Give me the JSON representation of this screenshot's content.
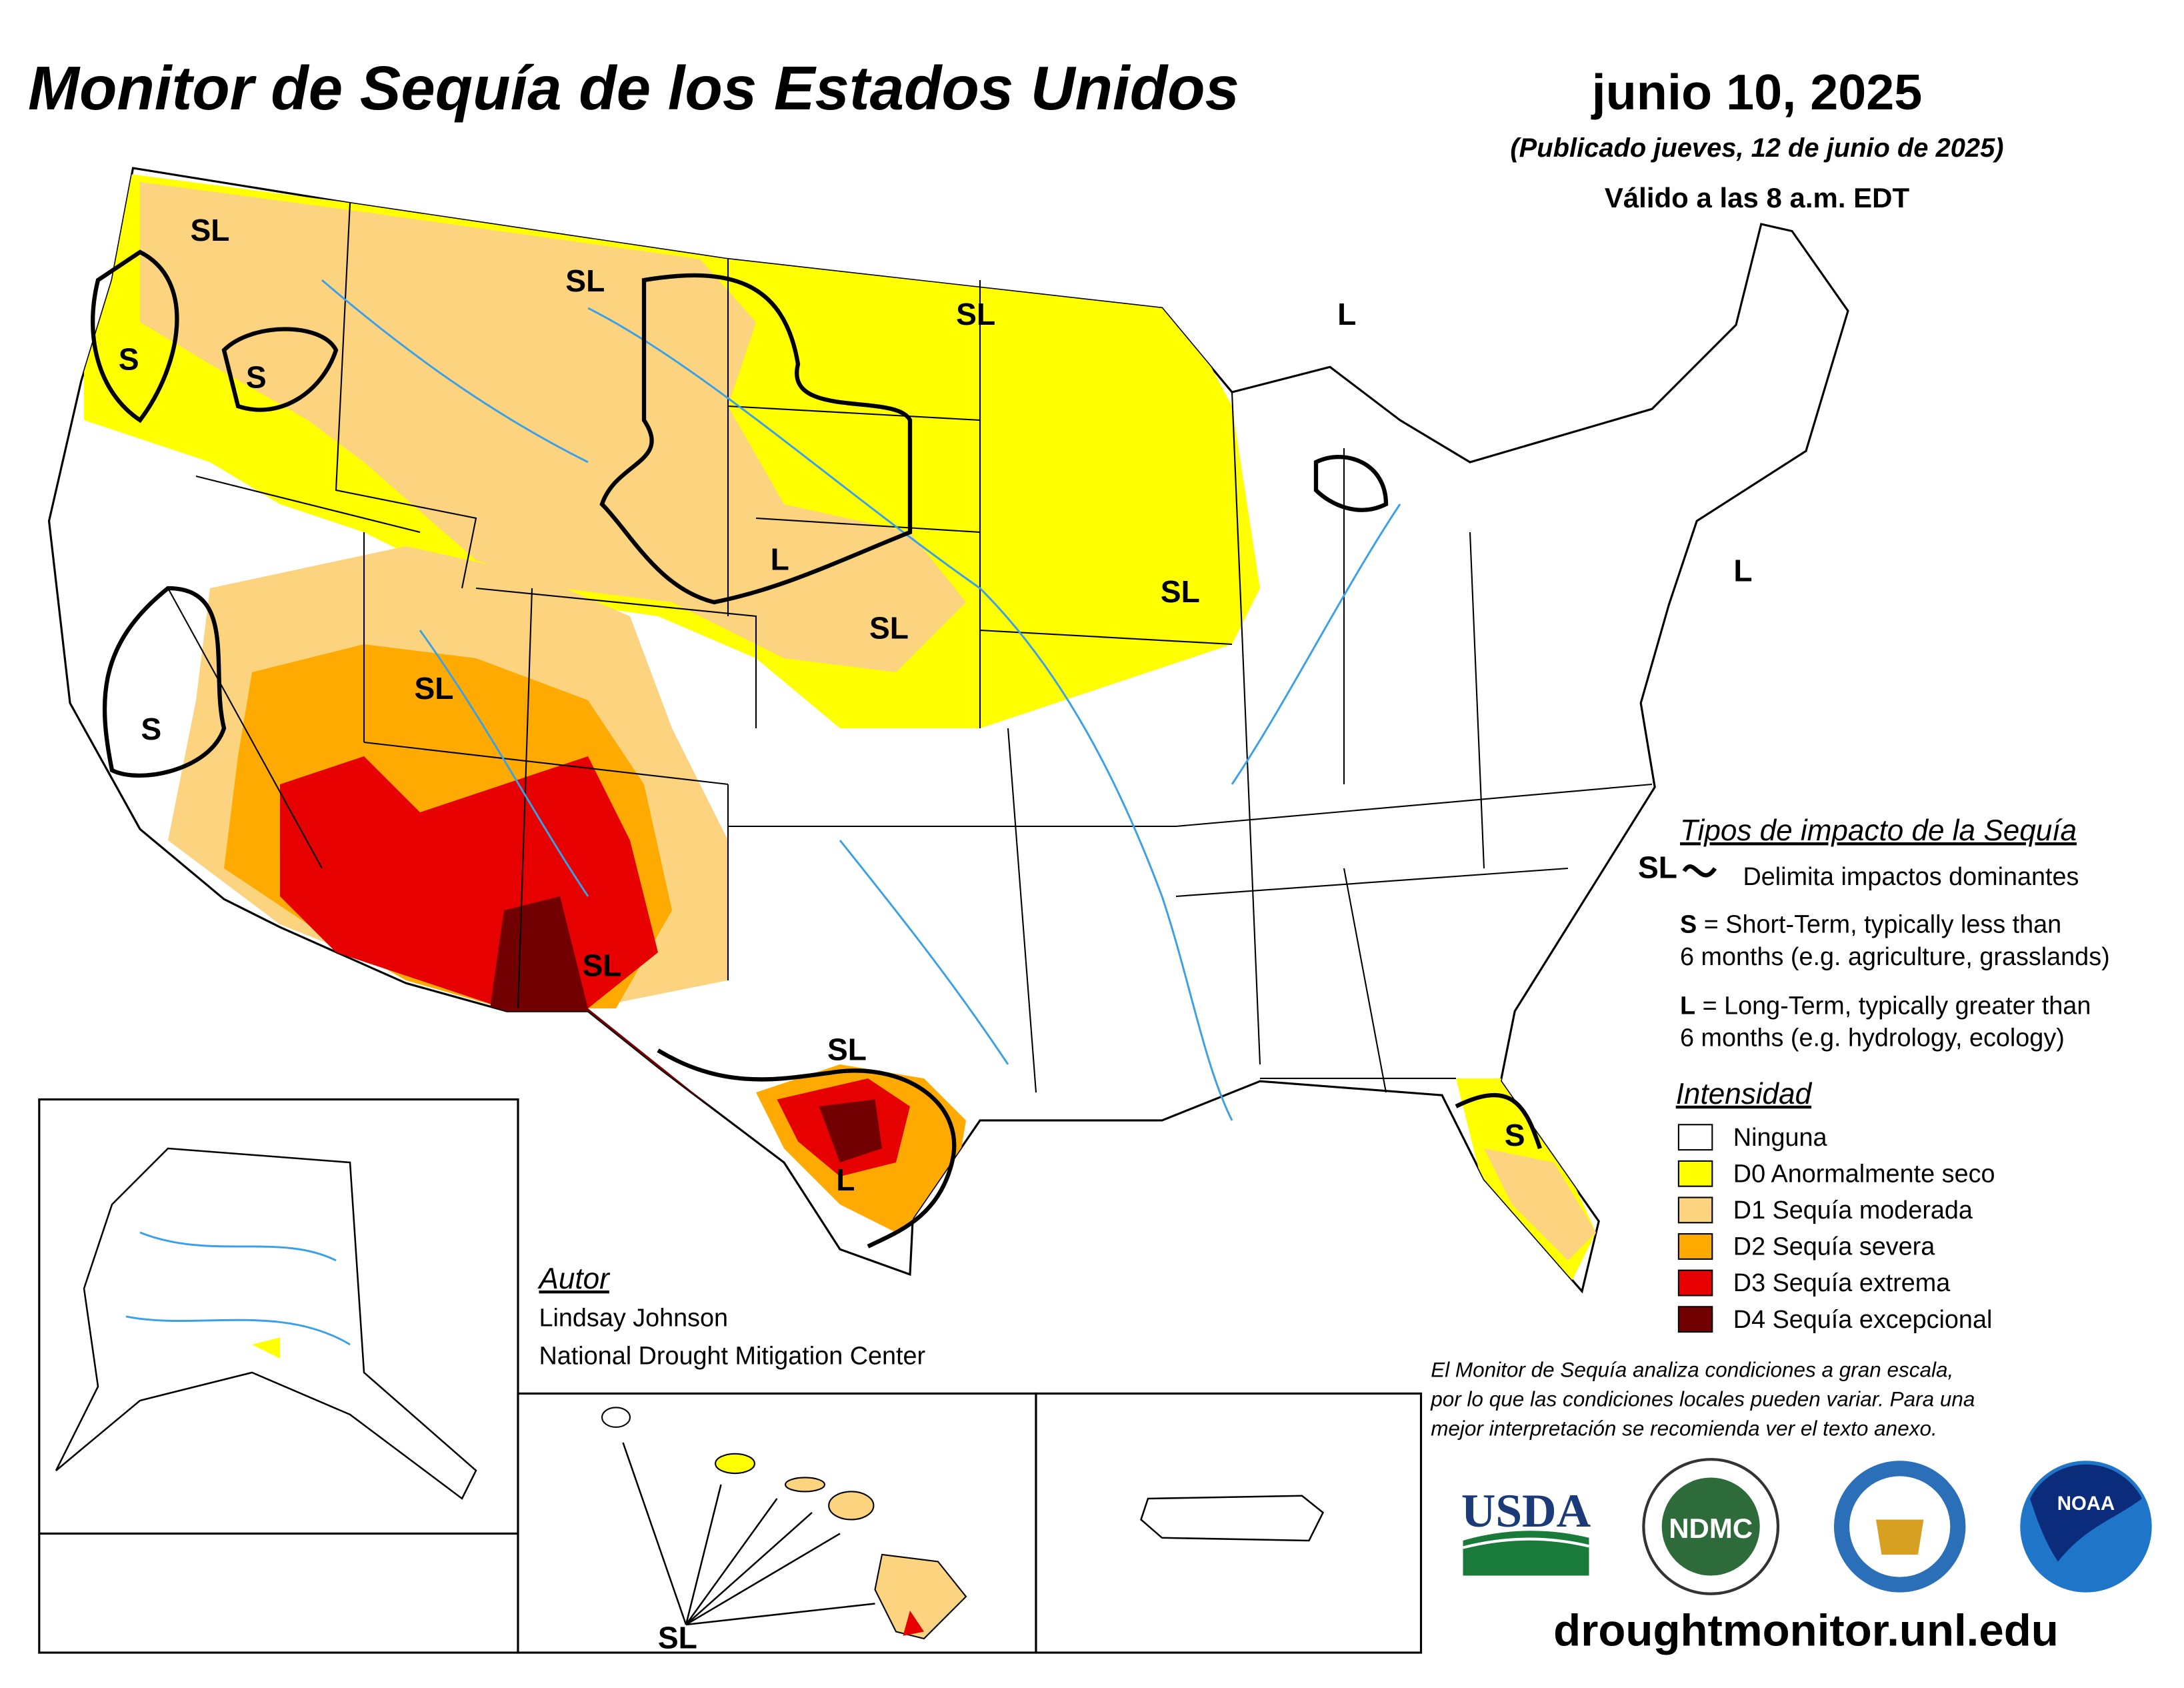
{
  "header": {
    "title": "Monitor de Sequía de los Estados Unidos",
    "date": "junio 10, 2025",
    "published": "(Publicado jueves, 12 de junio de 2025)",
    "valid": "Válido a las 8 a.m. EDT"
  },
  "impact_legend": {
    "title": "Tipos de impacto de la Sequía",
    "symbol": "SL",
    "symbol_text": "Delimita impactos dominantes",
    "short_term": {
      "code": "S",
      "line1": "= Short-Term, typically less than",
      "line2": "6 months (e.g. agriculture, grasslands)"
    },
    "long_term": {
      "code": "L",
      "line1": "= Long-Term, typically greater than",
      "line2": "6 months (e.g. hydrology, ecology)"
    }
  },
  "intensity_legend": {
    "title": "Intensidad",
    "items": [
      {
        "label": "Ninguna",
        "color": "#ffffff"
      },
      {
        "label": "D0 Anormalmente seco",
        "color": "#ffff00"
      },
      {
        "label": "D1 Sequía moderada",
        "color": "#fcd37f"
      },
      {
        "label": "D2 Sequía severa",
        "color": "#ffaa00"
      },
      {
        "label": "D3 Sequía extrema",
        "color": "#e60000"
      },
      {
        "label": "D4 Sequía excepcional",
        "color": "#730000"
      }
    ]
  },
  "author": {
    "title": "Autor",
    "name": "Lindsay Johnson",
    "org": "National Drought Mitigation Center"
  },
  "disclaimer": [
    "El Monitor de Sequía analiza condiciones a gran escala,",
    "por lo que las condiciones locales pueden variar. Para una",
    "mejor interpretación se recomienda ver el texto anexo."
  ],
  "logos": [
    "USDA",
    "NDMC",
    "NOAA"
  ],
  "url": "droughtmonitor.unl.edu",
  "map_labels": [
    "SL",
    "SL",
    "SL",
    "L",
    "S",
    "S",
    "L",
    "SL",
    "SL",
    "L",
    "SL",
    "S",
    "SL",
    "SL",
    "L",
    "S",
    "SL"
  ]
}
